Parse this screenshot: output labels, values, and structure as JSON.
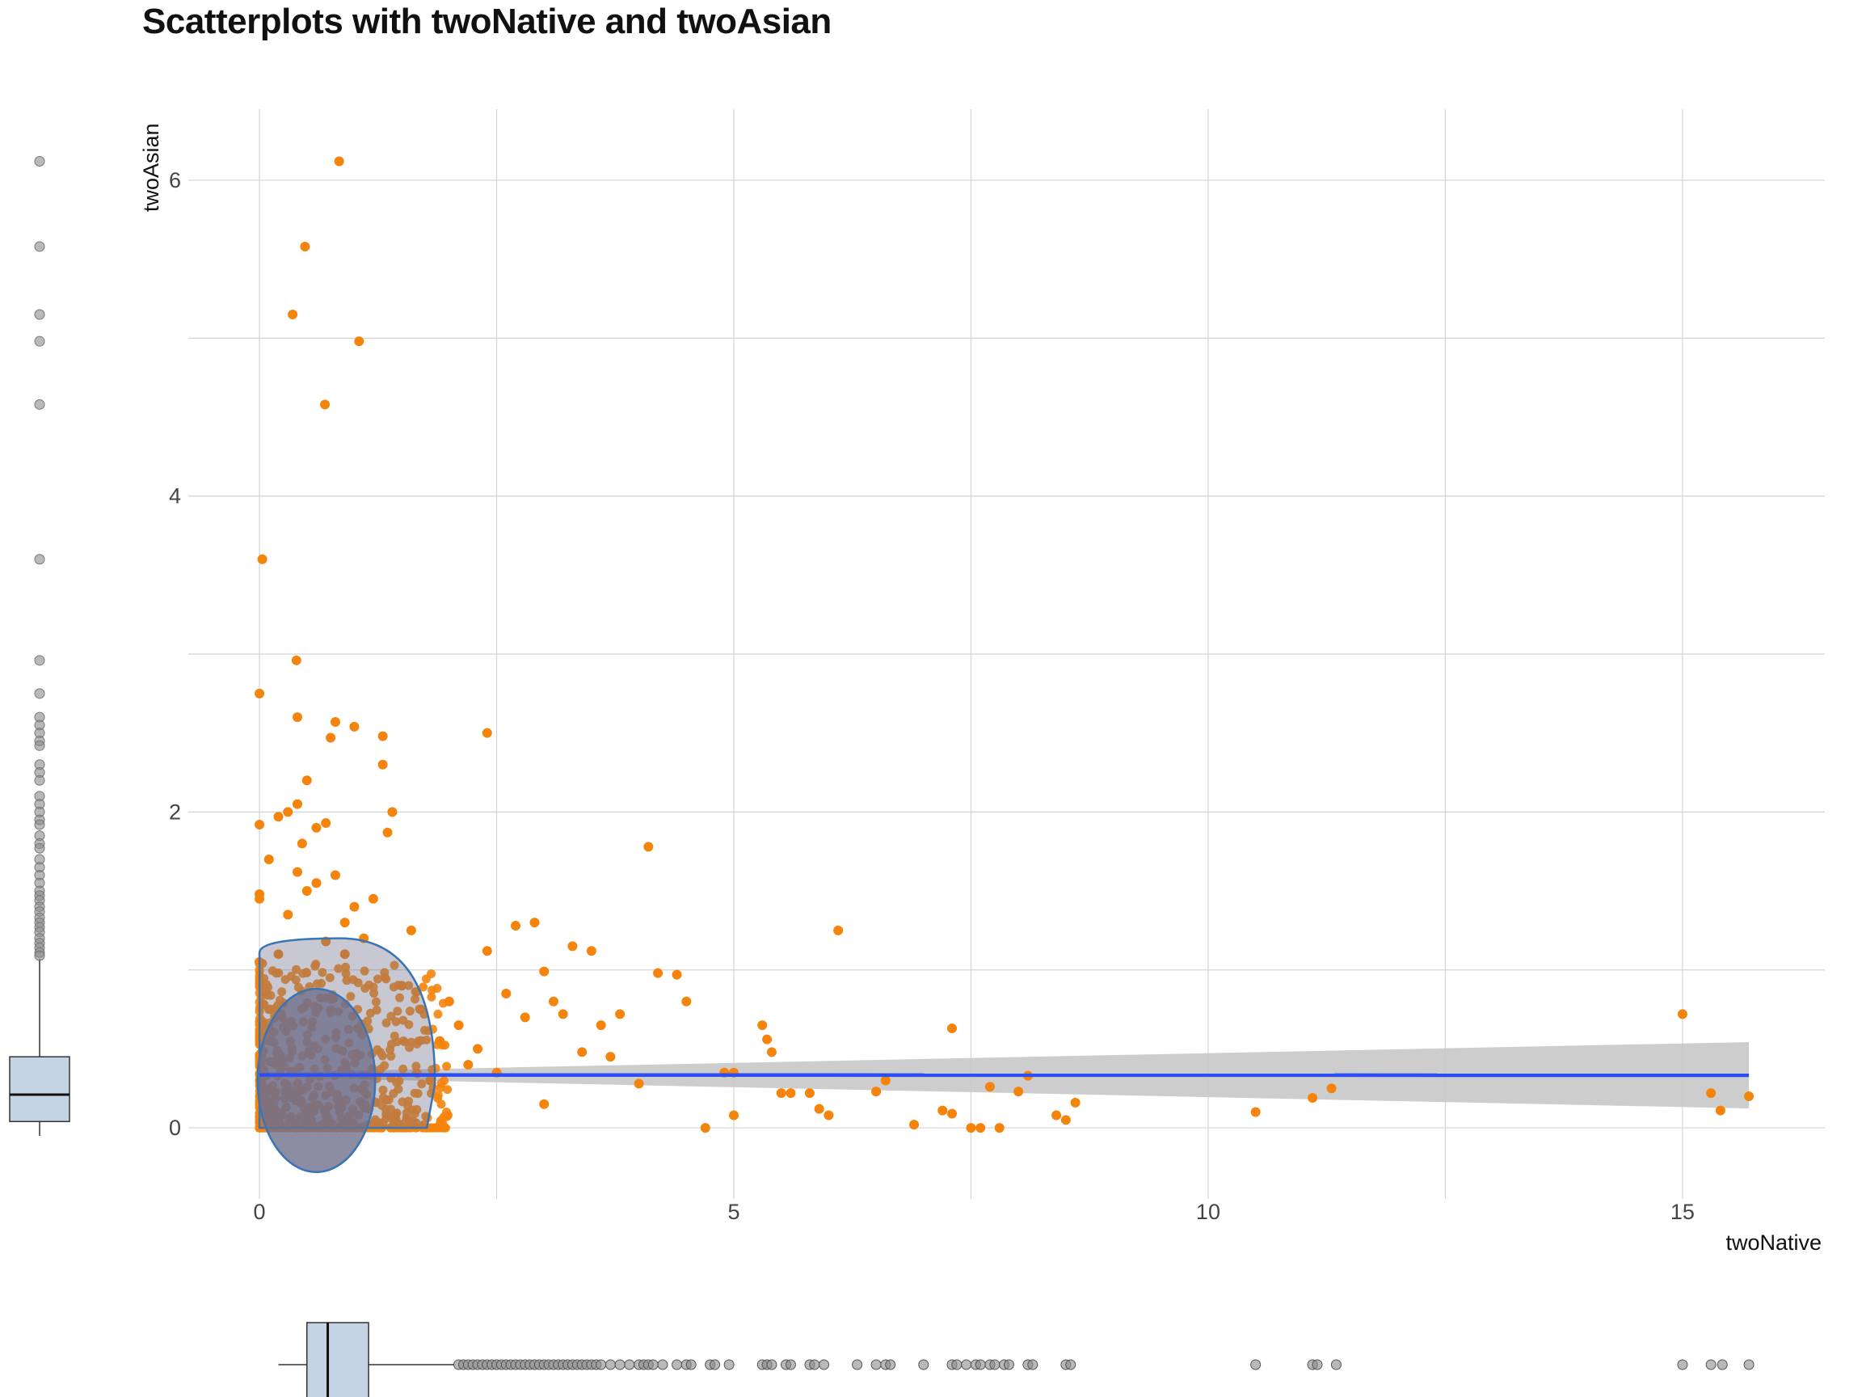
{
  "chart_data": {
    "type": "scatter",
    "title": "Scatterplots with twoNative and twoAsian",
    "xlabel": "twoNative",
    "ylabel": "twoAsian",
    "xlim": [
      -0.75,
      16.5
    ],
    "ylim": [
      -0.45,
      6.45
    ],
    "x_ticks": [
      0,
      5,
      10,
      15
    ],
    "y_ticks": [
      0,
      2,
      4,
      6
    ],
    "grid": true,
    "legend": "none",
    "colors": {
      "points": "#f5840c",
      "trend_line": "#2b4ff5",
      "confidence_band": "#c8c8c8",
      "contour": "#3a74b4",
      "density_fill": "#6f6f8c",
      "boxplot_fill": "#c5d4e4",
      "marginal_points": "#8a8a8a",
      "grid": "#d4d4d4"
    },
    "trend": {
      "method": "linear",
      "x_range": [
        0,
        15.7
      ],
      "y_start": 0.335,
      "y_end": 0.333,
      "band_start_halfwidth": 0.015,
      "band_end_halfwidth": 0.21
    },
    "density_contours": [
      {
        "level": "inner",
        "center": [
          0.6,
          0.3
        ],
        "half_width": 0.62,
        "half_height": 0.58
      },
      {
        "level": "outer",
        "center": [
          0.55,
          0.35
        ],
        "half_width": 1.3,
        "half_height": 0.85
      }
    ],
    "series": [
      {
        "x": [
          0.84,
          0.48,
          0.35,
          1.05,
          0.69,
          0.03,
          0.0,
          0.39,
          0.0,
          2.4,
          0.4,
          0.8,
          1.0,
          0.75,
          1.3,
          1.3,
          0.5,
          0.4,
          0.3,
          0.2,
          0.6,
          0.7,
          1.4,
          0.0,
          0.5,
          0.9,
          1.2,
          0.1,
          0.45,
          0.8,
          1.0,
          1.6,
          0.2,
          0.0,
          0.7,
          1.1,
          0.3,
          0.9,
          1.5,
          0.6,
          0.4,
          1.35,
          0.0,
          4.1,
          6.1,
          2.7,
          2.9,
          3.0,
          3.3,
          3.5,
          2.0,
          2.4,
          1.7,
          2.1,
          1.9,
          2.2,
          2.6,
          2.8,
          3.1,
          3.2,
          3.4,
          3.6,
          4.2,
          4.4,
          4.5,
          3.8,
          2.3,
          1.8,
          2.5,
          3.0,
          3.7,
          4.0,
          5.3,
          5.35,
          4.9,
          5.0,
          5.5,
          5.6,
          5.9,
          6.6,
          7.3,
          5.4,
          6.0,
          6.5,
          4.7,
          5.0,
          5.8,
          6.9,
          7.2,
          7.7,
          7.8,
          7.6,
          8.0,
          8.1,
          8.5,
          8.6,
          7.5,
          7.3,
          8.4,
          10.5,
          11.1,
          11.3,
          15.0,
          15.3,
          15.4,
          15.7
        ],
        "y": [
          6.12,
          5.58,
          5.15,
          4.98,
          4.58,
          3.6,
          2.75,
          2.96,
          1.92,
          2.5,
          2.6,
          2.57,
          2.54,
          2.47,
          2.48,
          2.3,
          2.2,
          2.05,
          2.0,
          1.97,
          1.9,
          1.93,
          2.0,
          1.45,
          1.5,
          1.3,
          1.45,
          1.7,
          1.8,
          1.6,
          1.4,
          1.25,
          1.1,
          1.05,
          1.18,
          1.2,
          1.35,
          1.1,
          0.9,
          1.55,
          1.62,
          1.87,
          1.48,
          1.78,
          1.25,
          1.28,
          1.3,
          0.99,
          1.15,
          1.12,
          0.8,
          1.12,
          0.75,
          0.65,
          0.55,
          0.4,
          0.85,
          0.7,
          0.8,
          0.72,
          0.48,
          0.65,
          0.98,
          0.97,
          0.8,
          0.72,
          0.5,
          0.3,
          0.35,
          0.15,
          0.45,
          0.28,
          0.65,
          0.56,
          0.35,
          0.35,
          0.22,
          0.22,
          0.12,
          0.3,
          0.63,
          0.48,
          0.08,
          0.23,
          0.0,
          0.08,
          0.22,
          0.02,
          0.11,
          0.26,
          0.0,
          0.0,
          0.23,
          0.33,
          0.05,
          0.16,
          0.0,
          0.09,
          0.08,
          0.1,
          0.19,
          0.25,
          0.72,
          0.22,
          0.11,
          0.2
        ]
      }
    ],
    "marginal_y_boxplot": {
      "min": 0.0,
      "q1": 0.04,
      "median": 0.21,
      "q3": 0.45,
      "whisker_high": 1.07,
      "outliers": [
        6.12,
        5.58,
        5.15,
        4.98,
        4.58,
        3.6,
        2.96,
        2.75,
        2.6,
        2.55,
        2.5,
        2.45,
        2.42,
        2.3,
        2.25,
        2.2,
        2.1,
        2.05,
        2.0,
        1.95,
        1.92,
        1.85,
        1.8,
        1.77,
        1.7,
        1.65,
        1.6,
        1.55,
        1.5,
        1.47,
        1.44,
        1.4,
        1.37,
        1.33,
        1.3,
        1.27,
        1.24,
        1.2,
        1.17,
        1.14,
        1.11,
        1.09
      ]
    },
    "marginal_x_boxplot": {
      "min": 0.2,
      "q1": 0.5,
      "median": 0.72,
      "q3": 1.15,
      "whisker_high": 2.05,
      "outliers": [
        2.1,
        2.15,
        2.2,
        2.25,
        2.3,
        2.35,
        2.4,
        2.45,
        2.5,
        2.55,
        2.6,
        2.65,
        2.7,
        2.75,
        2.8,
        2.85,
        2.9,
        2.95,
        3.0,
        3.05,
        3.1,
        3.15,
        3.2,
        3.25,
        3.3,
        3.35,
        3.4,
        3.45,
        3.5,
        3.55,
        3.6,
        3.7,
        3.8,
        3.9,
        4.0,
        4.05,
        4.1,
        4.15,
        4.25,
        4.4,
        4.5,
        4.55,
        4.75,
        4.8,
        4.95,
        5.3,
        5.35,
        5.4,
        5.55,
        5.6,
        5.8,
        5.85,
        5.95,
        6.3,
        6.5,
        6.6,
        6.65,
        7.0,
        7.3,
        7.35,
        7.45,
        7.55,
        7.6,
        7.7,
        7.75,
        7.85,
        7.9,
        8.1,
        8.15,
        8.5,
        8.55,
        10.5,
        11.1,
        11.15,
        11.35,
        15.0,
        15.3,
        15.42,
        15.7
      ]
    }
  }
}
